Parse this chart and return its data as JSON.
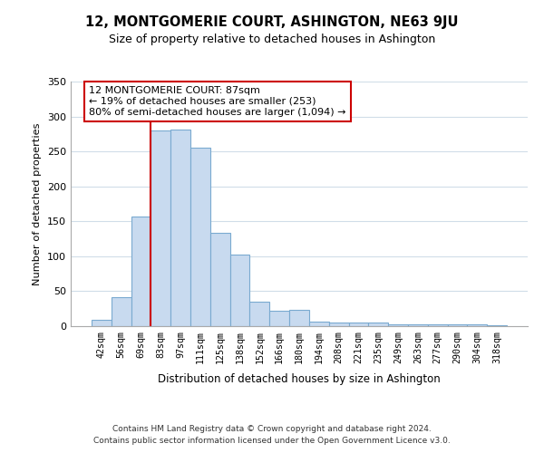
{
  "title": "12, MONTGOMERIE COURT, ASHINGTON, NE63 9JU",
  "subtitle": "Size of property relative to detached houses in Ashington",
  "xlabel": "Distribution of detached houses by size in Ashington",
  "ylabel": "Number of detached properties",
  "bar_labels": [
    "42sqm",
    "56sqm",
    "69sqm",
    "83sqm",
    "97sqm",
    "111sqm",
    "125sqm",
    "138sqm",
    "152sqm",
    "166sqm",
    "180sqm",
    "194sqm",
    "208sqm",
    "221sqm",
    "235sqm",
    "249sqm",
    "263sqm",
    "277sqm",
    "290sqm",
    "304sqm",
    "318sqm"
  ],
  "bar_values": [
    9,
    41,
    157,
    280,
    281,
    256,
    133,
    103,
    35,
    22,
    23,
    7,
    5,
    5,
    5,
    3,
    3,
    3,
    3,
    2,
    1
  ],
  "bar_color": "#c8daef",
  "bar_edge_color": "#7aaad0",
  "marker_line_color": "#cc0000",
  "annotation_line1": "12 MONTGOMERIE COURT: 87sqm",
  "annotation_line2": "← 19% of detached houses are smaller (253)",
  "annotation_line3": "80% of semi-detached houses are larger (1,094) →",
  "annotation_box_color": "#ffffff",
  "annotation_box_edge": "#cc0000",
  "ylim": [
    0,
    350
  ],
  "yticks": [
    0,
    50,
    100,
    150,
    200,
    250,
    300,
    350
  ],
  "footer_line1": "Contains HM Land Registry data © Crown copyright and database right 2024.",
  "footer_line2": "Contains public sector information licensed under the Open Government Licence v3.0.",
  "background_color": "#ffffff",
  "grid_color": "#d0dde8"
}
